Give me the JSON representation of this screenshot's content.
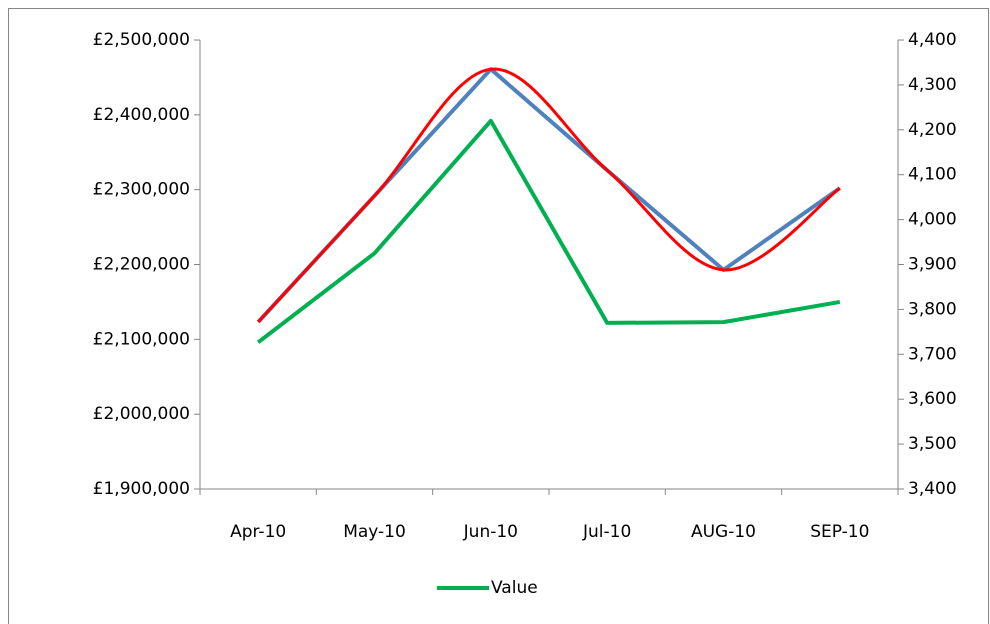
{
  "chart_data": {
    "type": "line",
    "categories": [
      "Apr-10",
      "May-10",
      "Jun-10",
      "Jul-10",
      "AUG-10",
      "SEP-10"
    ],
    "series": [
      {
        "name": "Value",
        "color": "#00b050",
        "values": [
          2096000,
          2215000,
          2392000,
          2122000,
          2123000,
          2150000
        ]
      },
      {
        "color": "#4f81bd",
        "axis": "y2",
        "values": [
          3772,
          4053,
          4335,
          4110,
          3888,
          4070
        ]
      },
      {
        "color": "#ff0000",
        "axis": "y2",
        "smooth": true,
        "values": [
          3772,
          4053,
          4335,
          4110,
          3888,
          4070
        ]
      }
    ],
    "ylim": [
      1900000,
      2500000
    ],
    "yticks": [
      {
        "value": 1900000,
        "label": "£1,900,000"
      },
      {
        "value": 2000000,
        "label": "£2,000,000"
      },
      {
        "value": 2100000,
        "label": "£2,100,000"
      },
      {
        "value": 2200000,
        "label": "£2,200,000"
      },
      {
        "value": 2300000,
        "label": "£2,300,000"
      },
      {
        "value": 2400000,
        "label": "£2,400,000"
      },
      {
        "value": 2500000,
        "label": "£2,500,000"
      }
    ],
    "y2lim": [
      3400,
      4400
    ],
    "y2ticks": [
      {
        "value": 3400,
        "label": "3,400"
      },
      {
        "value": 3500,
        "label": "3,500"
      },
      {
        "value": 3600,
        "label": "3,600"
      },
      {
        "value": 3700,
        "label": "3,700"
      },
      {
        "value": 3800,
        "label": "3,800"
      },
      {
        "value": 3900,
        "label": "3,900"
      },
      {
        "value": 4000,
        "label": "4,000"
      },
      {
        "value": 4100,
        "label": "4,100"
      },
      {
        "value": 4200,
        "label": "4,200"
      },
      {
        "value": 4300,
        "label": "4,300"
      },
      {
        "value": 4400,
        "label": "4,400"
      }
    ],
    "legend": "bottom"
  }
}
